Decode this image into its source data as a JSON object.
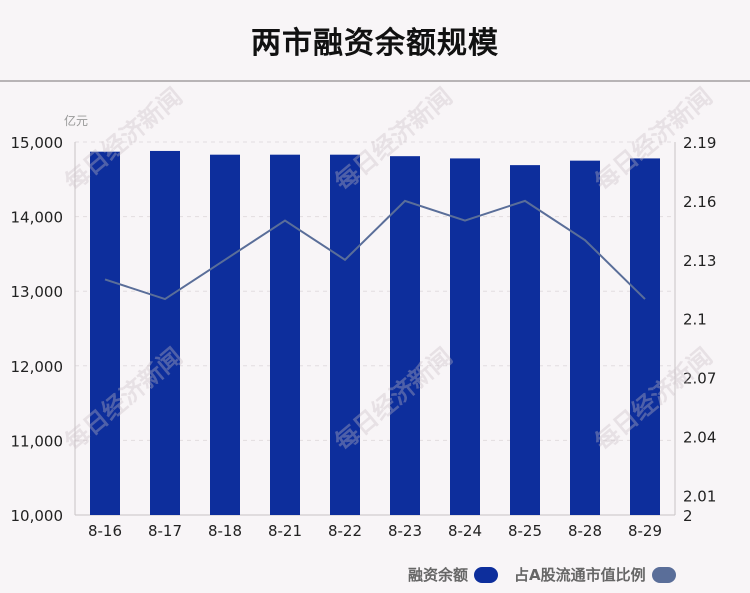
{
  "title": "两市融资余额规模",
  "left_unit": "亿元",
  "watermark_text": "每日经济新闻",
  "legend": [
    {
      "label": "融资余额",
      "color": "#0d2e9c"
    },
    {
      "label": "占A股流通市值比例",
      "color": "#5a6e99"
    }
  ],
  "chart_data": {
    "type": "bar",
    "categories": [
      "8-16",
      "8-17",
      "8-18",
      "8-21",
      "8-22",
      "8-23",
      "8-24",
      "8-25",
      "8-28",
      "8-29"
    ],
    "series": [
      {
        "name": "融资余额",
        "type": "bar",
        "axis": "left",
        "values": [
          14870,
          14880,
          14830,
          14830,
          14830,
          14810,
          14780,
          14690,
          14750,
          14780
        ]
      },
      {
        "name": "占A股流通市值比例",
        "type": "line",
        "axis": "right",
        "values": [
          2.12,
          2.11,
          2.13,
          2.15,
          2.13,
          2.16,
          2.15,
          2.16,
          2.14,
          2.11
        ]
      }
    ],
    "left_axis": {
      "ylim": [
        10000,
        15000
      ],
      "ticks": [
        "10,000",
        "11,000",
        "12,000",
        "13,000",
        "14,000",
        "15,000"
      ],
      "tick_values": [
        10000,
        11000,
        12000,
        13000,
        14000,
        15000
      ]
    },
    "right_axis": {
      "ylim": [
        2,
        2.19
      ],
      "ticks": [
        "2",
        "2.01",
        "2.04",
        "2.07",
        "2.1",
        "2.13",
        "2.16",
        "2.19"
      ],
      "tick_values": [
        2,
        2.01,
        2.04,
        2.07,
        2.1,
        2.13,
        2.16,
        2.19
      ]
    },
    "grid": true,
    "legend_position": "bottom-right"
  }
}
